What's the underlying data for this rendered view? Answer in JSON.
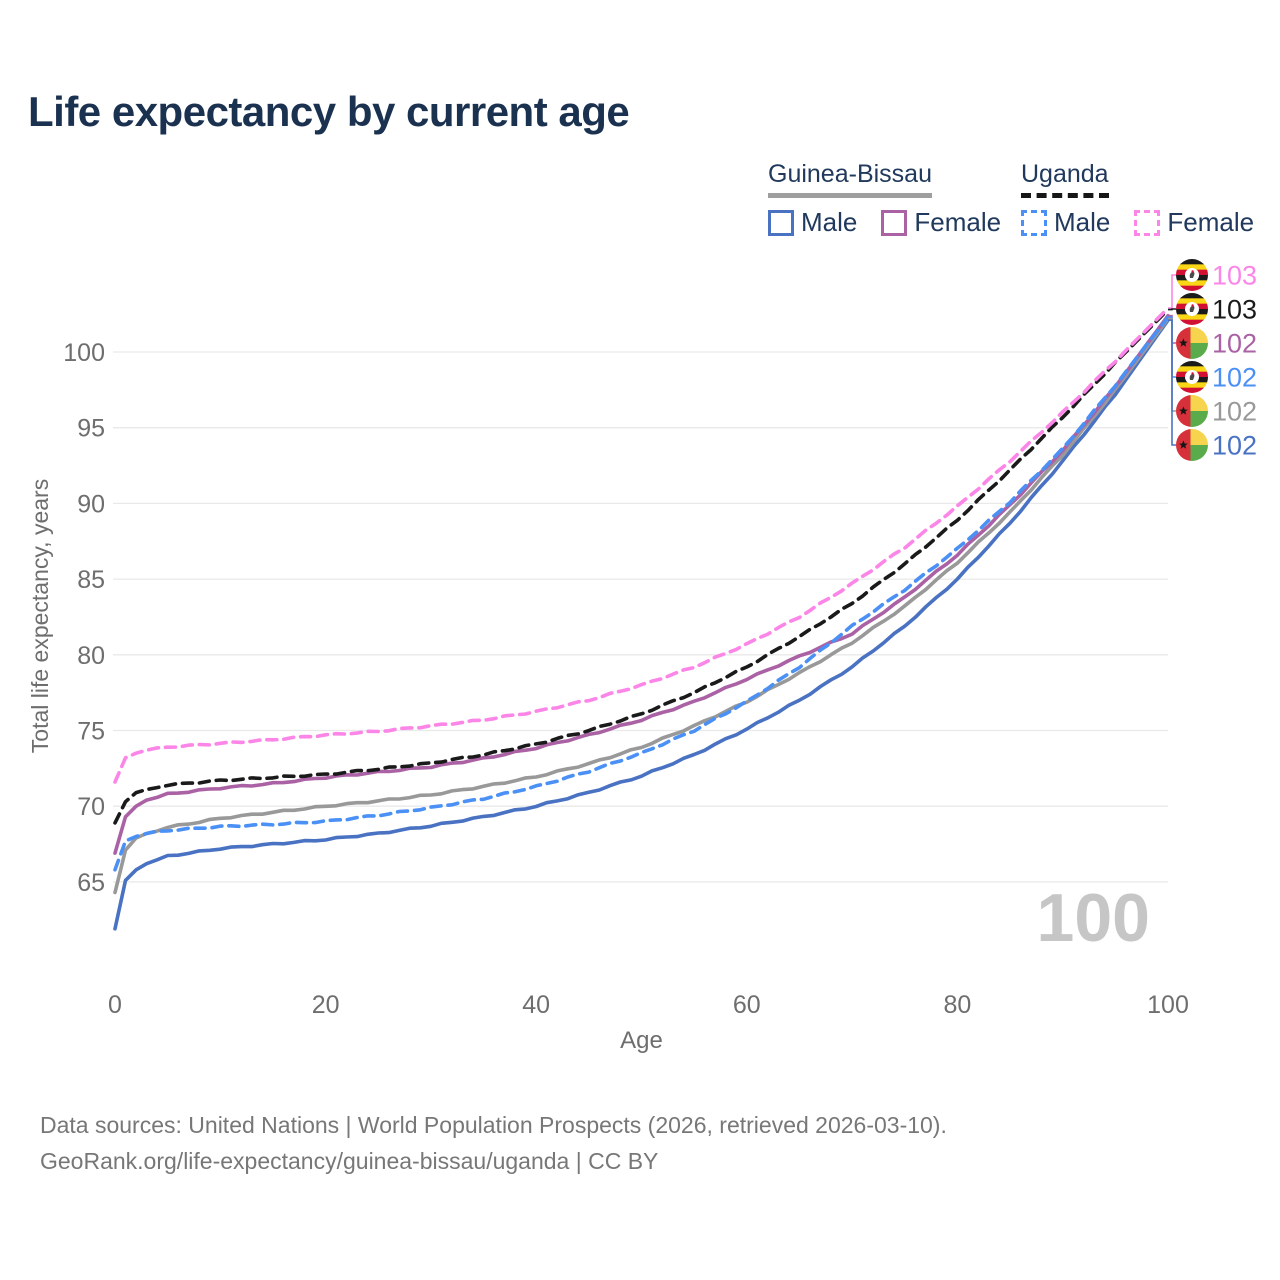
{
  "title": "Life expectancy by current age",
  "watermark": "100",
  "legend": {
    "groups": [
      {
        "name": "Guinea-Bissau",
        "style": "solid",
        "items": [
          {
            "label": "Male",
            "color": "#4a72c2"
          },
          {
            "label": "Female",
            "color": "#aa62a5"
          }
        ]
      },
      {
        "name": "Uganda",
        "style": "dashed",
        "items": [
          {
            "label": "Male",
            "color": "#4a90f5"
          },
          {
            "label": "Female",
            "color": "#fb86e7"
          }
        ]
      }
    ]
  },
  "footer": {
    "line1": "Data sources: United Nations | World Population Prospects (2026, retrieved 2026-03-10).",
    "line2": "GeoRank.org/life-expectancy/guinea-bissau/uganda | CC BY"
  },
  "colors": {
    "title_text": "#1b3150",
    "legend_text": "#20395c",
    "axis_text": "#6e6e6e",
    "gridline": "#e9e9e9",
    "watermark": "#c6c6c6"
  },
  "chart_data": {
    "type": "line",
    "xlabel": "Age",
    "ylabel": "Total life expectancy, years",
    "xticks": [
      0,
      20,
      40,
      60,
      80,
      100
    ],
    "yticks": [
      65,
      70,
      75,
      80,
      85,
      90,
      95,
      100
    ],
    "xlim": [
      0,
      100
    ],
    "ylim": [
      61,
      104
    ],
    "grid": "horizontal",
    "legend_position": "top-right",
    "x": [
      0,
      1,
      2,
      3,
      5,
      10,
      15,
      20,
      25,
      30,
      35,
      40,
      45,
      50,
      55,
      60,
      65,
      70,
      75,
      80,
      85,
      90,
      95,
      100
    ],
    "series": [
      {
        "name": "Uganda Female",
        "country": "uganda",
        "color": "#fb86e7",
        "dash": true,
        "end_label": "103",
        "values": [
          71.6,
          73.2,
          73.5,
          73.7,
          73.9,
          74.15,
          74.4,
          74.7,
          74.95,
          75.3,
          75.7,
          76.25,
          77.0,
          78.0,
          79.2,
          80.7,
          82.5,
          84.7,
          87.1,
          89.8,
          92.8,
          96.0,
          99.4,
          102.9
        ]
      },
      {
        "name": "Uganda",
        "country": "uganda",
        "color": "#1a1a1a",
        "dash": true,
        "end_label": "103",
        "values": [
          68.9,
          70.3,
          70.9,
          71.1,
          71.4,
          71.7,
          71.9,
          72.1,
          72.45,
          72.85,
          73.4,
          74.1,
          75.0,
          76.1,
          77.5,
          79.2,
          81.2,
          83.4,
          86.0,
          88.9,
          92.2,
          95.7,
          99.3,
          102.8
        ]
      },
      {
        "name": "Guinea-Bissau Female",
        "country": "guinea-bissau",
        "color": "#aa62a5",
        "dash": false,
        "end_label": "102",
        "values": [
          66.9,
          69.3,
          70.0,
          70.4,
          70.8,
          71.2,
          71.5,
          71.9,
          72.25,
          72.6,
          73.15,
          73.85,
          74.7,
          75.7,
          76.9,
          78.4,
          79.9,
          81.4,
          83.8,
          86.6,
          89.9,
          93.5,
          97.7,
          102.4
        ]
      },
      {
        "name": "Uganda Male",
        "country": "uganda",
        "color": "#4a90f5",
        "dash": true,
        "end_label": "102",
        "values": [
          65.8,
          67.7,
          68.0,
          68.2,
          68.4,
          68.65,
          68.8,
          69.0,
          69.4,
          69.9,
          70.5,
          71.3,
          72.3,
          73.5,
          75.0,
          76.9,
          79.2,
          81.9,
          84.3,
          87.0,
          90.1,
          93.6,
          97.8,
          102.3
        ]
      },
      {
        "name": "Guinea-Bissau",
        "country": "guinea-bissau",
        "color": "#999999",
        "dash": false,
        "end_label": "102",
        "values": [
          64.3,
          67.1,
          67.9,
          68.2,
          68.6,
          69.2,
          69.6,
          70.0,
          70.35,
          70.75,
          71.3,
          71.95,
          72.8,
          73.9,
          75.3,
          76.9,
          78.8,
          80.8,
          83.2,
          86.1,
          89.4,
          93.2,
          97.5,
          102.2
        ]
      },
      {
        "name": "Guinea-Bissau Male",
        "country": "guinea-bissau",
        "color": "#4a72c2",
        "dash": false,
        "end_label": "102",
        "values": [
          61.9,
          65.1,
          65.8,
          66.2,
          66.7,
          67.2,
          67.5,
          67.8,
          68.2,
          68.7,
          69.3,
          70.0,
          70.9,
          72.0,
          73.4,
          75.1,
          77.0,
          79.2,
          81.9,
          85.0,
          88.7,
          92.8,
          97.2,
          102.1
        ]
      }
    ]
  }
}
